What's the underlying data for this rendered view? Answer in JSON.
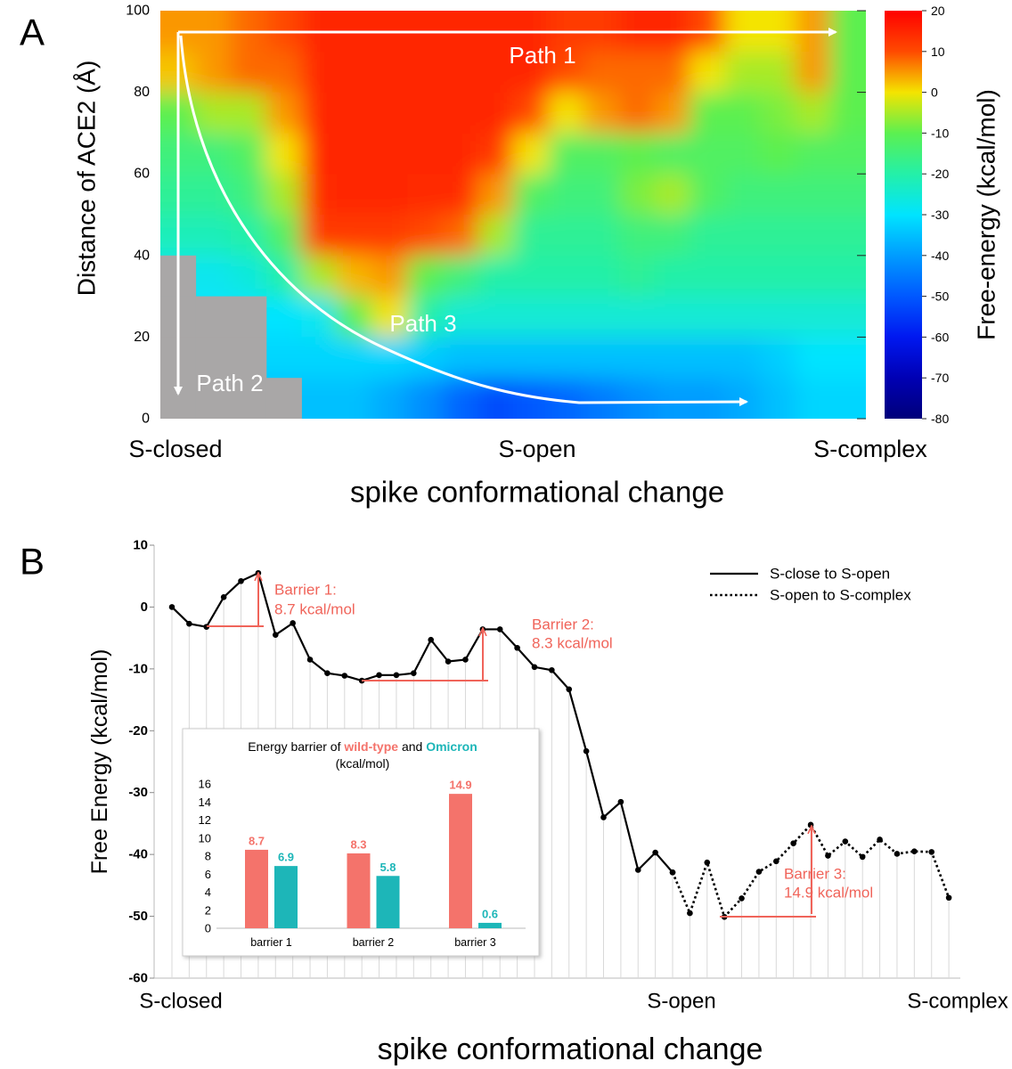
{
  "chart_data": [
    {
      "type": "heatmap",
      "panel_label": "A",
      "xlabel": "spike conformational change",
      "ylabel": "Distance of ACE2 (Å)",
      "colorbar_label": "Free-energy (kcal/mol)",
      "x_labels": [
        "S-closed",
        "S-open",
        "S-complex"
      ],
      "annotations": [
        "Path 1",
        "Path 2",
        "Path 3"
      ],
      "ylim": [
        0,
        100
      ],
      "yticks": [
        0,
        20,
        40,
        60,
        80,
        100
      ],
      "zlim": [
        -80,
        20
      ],
      "zticks": [
        20,
        10,
        0,
        -10,
        -20,
        -30,
        -40,
        -50,
        -60,
        -70,
        -80
      ],
      "colorscale": [
        "#00007a",
        "#0000b4",
        "#0018f0",
        "#0058ff",
        "#009cff",
        "#00e4ff",
        "#24f0a8",
        "#5cf050",
        "#f4e400",
        "#ff4a00",
        "#ff0000"
      ],
      "null_color": "#a9a7a7",
      "y": [
        95,
        85,
        75,
        65,
        55,
        45,
        35,
        25,
        15,
        5
      ],
      "z": [
        [
          5,
          5,
          8,
          10,
          15,
          15,
          15,
          15,
          15,
          15,
          15,
          12,
          12,
          15,
          15,
          10,
          0,
          0,
          5,
          -10
        ],
        [
          2,
          5,
          8,
          8,
          15,
          15,
          15,
          15,
          15,
          15,
          15,
          10,
          8,
          8,
          8,
          0,
          -5,
          -5,
          5,
          -10
        ],
        [
          -10,
          -5,
          -5,
          5,
          15,
          15,
          15,
          15,
          15,
          15,
          10,
          0,
          5,
          8,
          5,
          -10,
          -10,
          -8,
          -5,
          -10
        ],
        [
          -15,
          -15,
          -12,
          0,
          15,
          15,
          15,
          15,
          15,
          12,
          0,
          -12,
          -12,
          -10,
          -12,
          -12,
          -12,
          -10,
          -12,
          -12
        ],
        [
          -18,
          -18,
          -15,
          -5,
          14,
          15,
          15,
          14,
          14,
          5,
          -12,
          -15,
          -15,
          -8,
          -5,
          -12,
          -15,
          -15,
          -15,
          -15
        ],
        [
          -22,
          -22,
          -20,
          -12,
          12,
          12,
          12,
          10,
          8,
          -5,
          -18,
          -18,
          -18,
          -15,
          -15,
          -18,
          -18,
          -18,
          -18,
          -18
        ],
        [
          null,
          -28,
          -26,
          -20,
          -5,
          3,
          5,
          -10,
          -15,
          -20,
          -20,
          -20,
          -20,
          -18,
          -20,
          -20,
          -20,
          -20,
          -20,
          -20
        ],
        [
          null,
          null,
          null,
          -30,
          -28,
          -10,
          0,
          -20,
          -25,
          -25,
          -25,
          -25,
          -25,
          -25,
          -25,
          -25,
          -25,
          -25,
          -25,
          -25
        ],
        [
          null,
          null,
          null,
          -32,
          -32,
          -32,
          -32,
          -33,
          -35,
          -35,
          -35,
          -35,
          -35,
          -35,
          -35,
          -35,
          -35,
          -33,
          -30,
          -30
        ],
        [
          null,
          null,
          null,
          null,
          -35,
          -35,
          -38,
          -42,
          -48,
          -52,
          -50,
          -48,
          -45,
          -42,
          -40,
          -40,
          -38,
          -35,
          -32,
          -32
        ]
      ]
    },
    {
      "type": "line",
      "panel_label": "B",
      "xlabel": "spike conformational change",
      "ylabel": "Free Energy (kcal/mol)",
      "categories": [
        "S-closed",
        null,
        null,
        null,
        null,
        null,
        null,
        null,
        null,
        null,
        null,
        null,
        null,
        null,
        null,
        null,
        null,
        null,
        null,
        null,
        null,
        null,
        null,
        null,
        null,
        null,
        null,
        null,
        null,
        "S-open",
        null,
        null,
        null,
        null,
        null,
        null,
        null,
        null,
        null,
        null,
        null,
        null,
        null,
        null,
        null,
        "S-complex"
      ],
      "series": [
        {
          "name": "S-close to S-open",
          "color": "#000000",
          "dash": "solid",
          "values": [
            0,
            -2.7,
            -3.2,
            1.6,
            4.2,
            5.5,
            -4.5,
            -2.6,
            -8.5,
            -10.7,
            -11.1,
            -11.9,
            -11.0,
            -11.0,
            -10.7,
            -5.3,
            -8.8,
            -8.5,
            -3.6,
            -3.6,
            -6.6,
            -9.7,
            -10.2,
            -13.3,
            -23.3,
            -34.0,
            -31.5,
            -42.5,
            -39.7,
            -42.9,
            null,
            null,
            null,
            null,
            null,
            null,
            null,
            null,
            null,
            null,
            null,
            null,
            null,
            null,
            null,
            null
          ]
        },
        {
          "name": "S-open to S-complex",
          "color": "#000000",
          "dash": "dotted",
          "values": [
            null,
            null,
            null,
            null,
            null,
            null,
            null,
            null,
            null,
            null,
            null,
            null,
            null,
            null,
            null,
            null,
            null,
            null,
            null,
            null,
            null,
            null,
            null,
            null,
            null,
            null,
            null,
            null,
            null,
            -42.9,
            -49.5,
            -41.3,
            -50.1,
            -47.1,
            -42.8,
            -41.1,
            -38.2,
            -35.2,
            -40.2,
            -37.9,
            -40.4,
            -37.6,
            -39.9,
            -39.5,
            -39.6,
            -47.0
          ]
        }
      ],
      "ylim": [
        -60,
        10
      ],
      "yticks": [
        10,
        0,
        -10,
        -20,
        -30,
        -40,
        -50,
        -60
      ],
      "legend": "upper right",
      "annotation_color": "#f0645a",
      "annotations": [
        [
          "Barrier 1:",
          "8.7 kcal/mol"
        ],
        [
          "Barrier 2:",
          "8.3 kcal/mol"
        ],
        [
          "Barrier 3:",
          "14.9 kcal/mol"
        ]
      ]
    },
    {
      "type": "bar",
      "title": [
        "Energy barrier of",
        "and"
      ],
      "subtitle": "(kcal/mol)",
      "categories": [
        "barrier 1",
        "barrier 2",
        "barrier 3"
      ],
      "series": [
        {
          "name": "wild-type",
          "color": "#f4736b",
          "values": [
            8.7,
            8.3,
            14.9
          ]
        },
        {
          "name": "Omicron",
          "color": "#1db6b8",
          "values": [
            6.9,
            5.8,
            0.6
          ]
        }
      ],
      "ylim": [
        0,
        16
      ],
      "yticks": [
        0,
        2,
        4,
        6,
        8,
        10,
        12,
        14,
        16
      ],
      "data_labels": true
    }
  ]
}
